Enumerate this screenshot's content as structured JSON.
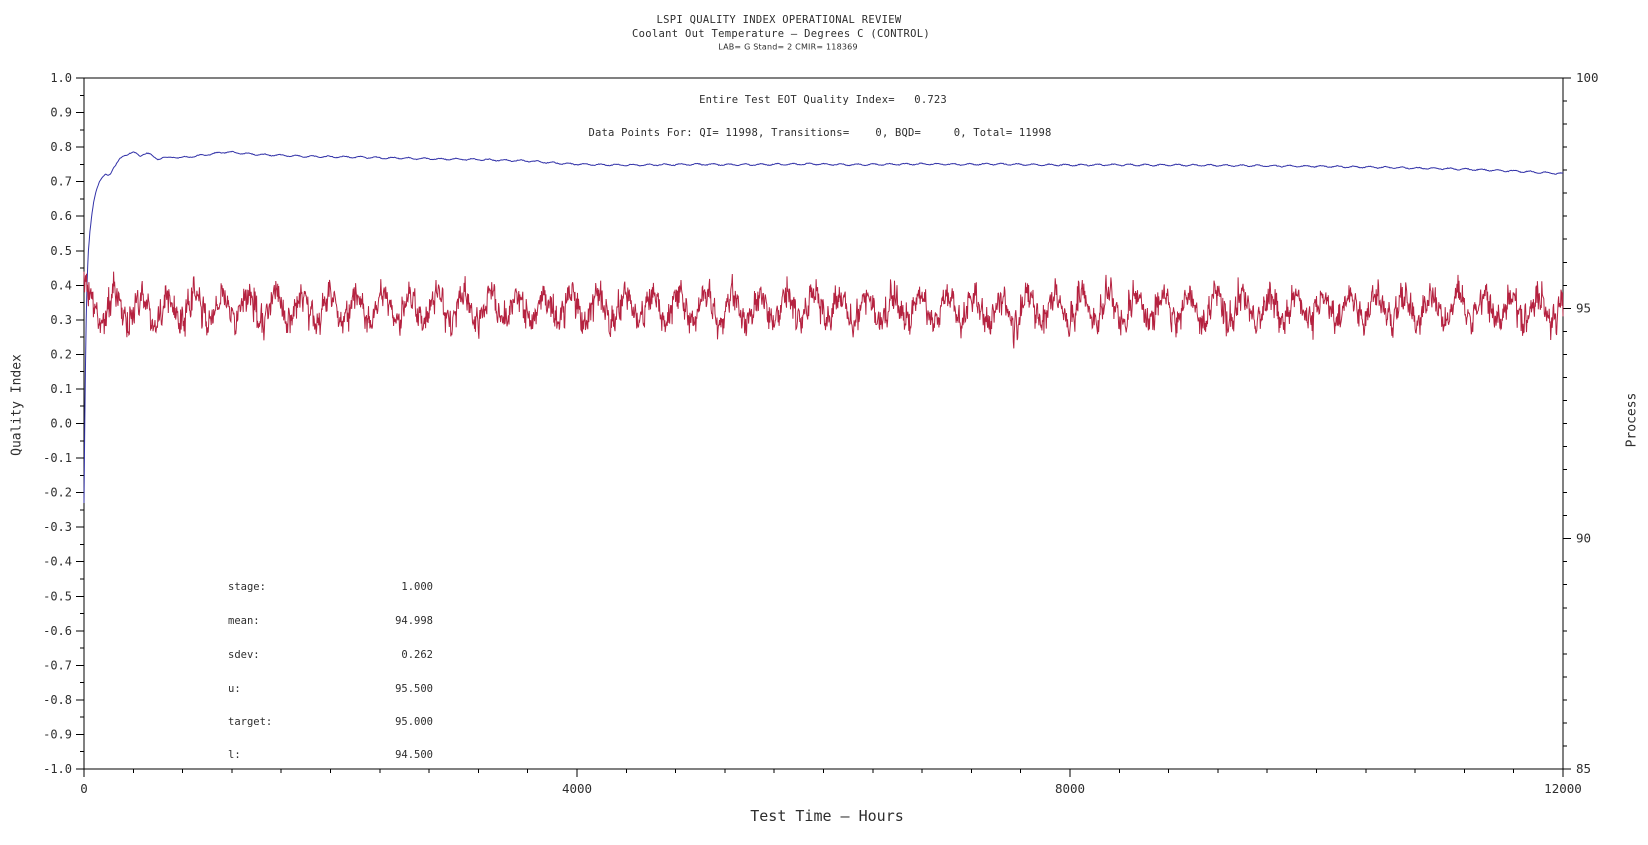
{
  "titles": {
    "line1": "LSPI QUALITY INDEX OPERATIONAL REVIEW",
    "line2": "Coolant Out Temperature — Degrees C (CONTROL)",
    "line3": "LAB= G Stand= 2 CMIR= 118369"
  },
  "annotations": {
    "eot_line": "Entire Test EOT Quality Index=   0.723",
    "datapoints_line": "Data Points For: QI= 11998, Transitions=    0, BQD=     0, Total= 11998"
  },
  "stats": [
    {
      "label": "stage:",
      "value": "1.000"
    },
    {
      "label": "mean:",
      "value": "94.998"
    },
    {
      "label": "sdev:",
      "value": "0.262"
    },
    {
      "label": "u:",
      "value": "95.500"
    },
    {
      "label": "target:",
      "value": "95.000"
    },
    {
      "label": "l:",
      "value": "94.500"
    }
  ],
  "colors": {
    "qi_line": "#3232a8",
    "process_line": "#b52240",
    "axis": "#000000",
    "text": "#2e2e2e"
  },
  "chart_data": {
    "type": "line",
    "title": "LSPI QUALITY INDEX OPERATIONAL REVIEW",
    "subtitle": "Coolant Out Temperature — Degrees C (CONTROL)",
    "subtitle2": "LAB= G Stand= 2 CMIR= 118369",
    "xlabel": "Test Time — Hours",
    "ylabel_left": "Quality Index",
    "ylabel_right": "Process",
    "eot_quality_index": 0.723,
    "data_points": {
      "qi": 11998,
      "transitions": 0,
      "bqd": 0,
      "total": 11998
    },
    "process_stats": {
      "stage": 1.0,
      "mean": 94.998,
      "sdev": 0.262,
      "u": 95.5,
      "target": 95.0,
      "l": 94.5
    },
    "x_axis": {
      "min": 0,
      "max": 12000,
      "minor_step": 400,
      "major_ticks": [
        {
          "v": 0,
          "label": "0"
        },
        {
          "v": 4000,
          "label": "4000"
        },
        {
          "v": 8000,
          "label": "8000"
        },
        {
          "v": 12000,
          "label": "12000"
        }
      ]
    },
    "y_left": {
      "min": -1.0,
      "max": 1.0,
      "minor_step": 0.05,
      "major_ticks": [
        {
          "v": 1.0,
          "label": "1.0"
        },
        {
          "v": 0.9,
          "label": "0.9"
        },
        {
          "v": 0.8,
          "label": "0.8"
        },
        {
          "v": 0.7,
          "label": "0.7"
        },
        {
          "v": 0.6,
          "label": "0.6"
        },
        {
          "v": 0.5,
          "label": "0.5"
        },
        {
          "v": 0.4,
          "label": "0.4"
        },
        {
          "v": 0.3,
          "label": "0.3"
        },
        {
          "v": 0.2,
          "label": "0.2"
        },
        {
          "v": 0.1,
          "label": "0.1"
        },
        {
          "v": 0.0,
          "label": "0.0"
        },
        {
          "v": -0.1,
          "label": "-0.1"
        },
        {
          "v": -0.2,
          "label": "-0.2"
        },
        {
          "v": -0.3,
          "label": "-0.3"
        },
        {
          "v": -0.4,
          "label": "-0.4"
        },
        {
          "v": -0.5,
          "label": "-0.5"
        },
        {
          "v": -0.6,
          "label": "-0.6"
        },
        {
          "v": -0.7,
          "label": "-0.7"
        },
        {
          "v": -0.8,
          "label": "-0.8"
        },
        {
          "v": -0.9,
          "label": "-0.9"
        },
        {
          "v": -1.0,
          "label": "-1.0"
        }
      ]
    },
    "y_right": {
      "min": 85,
      "max": 100,
      "minor_step": 0.5,
      "major_ticks": [
        {
          "v": 100,
          "label": "100"
        },
        {
          "v": 95,
          "label": "95"
        },
        {
          "v": 90,
          "label": "90"
        },
        {
          "v": 85,
          "label": "85"
        }
      ]
    },
    "series": [
      {
        "name": "quality-index",
        "axis": "left",
        "color": "#3232a8",
        "end_value": 0.723,
        "keypoints": [
          [
            0,
            -0.23
          ],
          [
            4,
            -0.1
          ],
          [
            7,
            0.02
          ],
          [
            10,
            0.12
          ],
          [
            14,
            0.22
          ],
          [
            18,
            0.3
          ],
          [
            22,
            0.38
          ],
          [
            28,
            0.44
          ],
          [
            36,
            0.5
          ],
          [
            48,
            0.555
          ],
          [
            62,
            0.6
          ],
          [
            80,
            0.645
          ],
          [
            100,
            0.675
          ],
          [
            125,
            0.7
          ],
          [
            150,
            0.713
          ],
          [
            175,
            0.722
          ],
          [
            195,
            0.718
          ],
          [
            215,
            0.722
          ],
          [
            240,
            0.74
          ],
          [
            270,
            0.755
          ],
          [
            300,
            0.768
          ],
          [
            335,
            0.777
          ],
          [
            370,
            0.783
          ],
          [
            400,
            0.786
          ],
          [
            430,
            0.779
          ],
          [
            455,
            0.773
          ],
          [
            480,
            0.78
          ],
          [
            510,
            0.784
          ],
          [
            540,
            0.778
          ],
          [
            570,
            0.769
          ],
          [
            600,
            0.765
          ],
          [
            640,
            0.771
          ],
          [
            680,
            0.768
          ],
          [
            730,
            0.772
          ],
          [
            790,
            0.769
          ],
          [
            850,
            0.772
          ],
          [
            950,
            0.776
          ],
          [
            1050,
            0.781
          ],
          [
            1150,
            0.786
          ],
          [
            1250,
            0.783
          ],
          [
            1350,
            0.78
          ],
          [
            1450,
            0.778
          ],
          [
            1600,
            0.776
          ],
          [
            1800,
            0.773
          ],
          [
            2000,
            0.772
          ],
          [
            2200,
            0.771
          ],
          [
            2400,
            0.769
          ],
          [
            2600,
            0.768
          ],
          [
            2800,
            0.766
          ],
          [
            3000,
            0.765
          ],
          [
            3200,
            0.764
          ],
          [
            3400,
            0.762
          ],
          [
            3600,
            0.76
          ],
          [
            3750,
            0.756
          ],
          [
            3900,
            0.752
          ],
          [
            4050,
            0.75
          ],
          [
            4200,
            0.749
          ],
          [
            4400,
            0.748
          ],
          [
            4700,
            0.749
          ],
          [
            5000,
            0.75
          ],
          [
            5300,
            0.749
          ],
          [
            5600,
            0.75
          ],
          [
            5900,
            0.751
          ],
          [
            6200,
            0.749
          ],
          [
            6500,
            0.75
          ],
          [
            6800,
            0.751
          ],
          [
            7100,
            0.75
          ],
          [
            7400,
            0.751
          ],
          [
            7700,
            0.749
          ],
          [
            8000,
            0.748
          ],
          [
            8300,
            0.749
          ],
          [
            8600,
            0.748
          ],
          [
            8900,
            0.748
          ],
          [
            9200,
            0.747
          ],
          [
            9500,
            0.746
          ],
          [
            9800,
            0.745
          ],
          [
            10100,
            0.744
          ],
          [
            10400,
            0.742
          ],
          [
            10700,
            0.74
          ],
          [
            11000,
            0.738
          ],
          [
            11300,
            0.735
          ],
          [
            11500,
            0.732
          ],
          [
            11700,
            0.729
          ],
          [
            11850,
            0.726
          ],
          [
            12000,
            0.723
          ]
        ],
        "wiggle": {
          "amp": 0.0022,
          "period": 130,
          "start": 250,
          "seed": 77
        }
      },
      {
        "name": "process-temperature",
        "axis": "right",
        "color": "#b52240",
        "generator": {
          "mean": 95.0,
          "slow_amp": 0.3,
          "slow_period": 218,
          "mid_amp": 0.12,
          "mid_period": 46,
          "noise_sd": 0.15,
          "step": 4,
          "seed": 1234,
          "spike_amp": 0.55,
          "start_amp": 0.55
        }
      }
    ]
  }
}
